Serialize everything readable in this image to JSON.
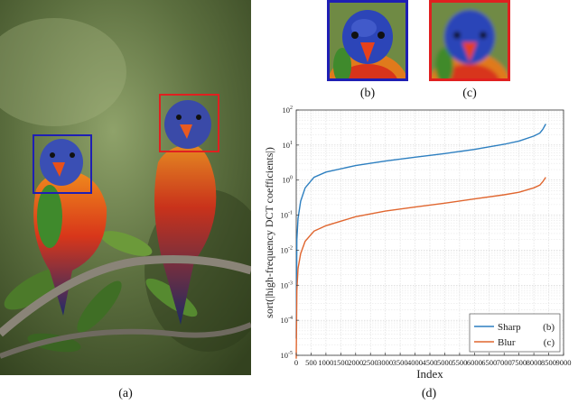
{
  "panel_labels": {
    "a": "(a)",
    "b": "(b)",
    "c": "(c)",
    "d": "(d)"
  },
  "colors": {
    "sharp_series": "#2d7fc0",
    "blur_series": "#e0662f",
    "box_sharp": "#1f1fb4",
    "box_blur": "#e02020"
  },
  "icons": [
    "parrot-photo",
    "parrot-crop-sharp",
    "parrot-crop-blur"
  ],
  "chart_data": {
    "type": "line",
    "xlabel": "Index",
    "ylabel": "sort(|high-frequency DCT coefficients|)",
    "xlim": [
      0,
      9000
    ],
    "x_ticks": [
      "0",
      "500",
      "1000",
      "1500",
      "2000",
      "2500",
      "3000",
      "3500",
      "4000",
      "4500",
      "5000",
      "5500",
      "6000",
      "6500",
      "7000",
      "7500",
      "8000",
      "8500",
      "9000"
    ],
    "ylim_log10": [
      -5,
      2
    ],
    "y_tick_exponents": [
      -5,
      -4,
      -3,
      -2,
      -1,
      0,
      1,
      2
    ],
    "y_scale": "log",
    "grid": true,
    "legend_position": "bottom-right",
    "legend": [
      {
        "label": "Sharp",
        "tag": "(b)"
      },
      {
        "label": "Blur",
        "tag": "(c)"
      }
    ],
    "series": [
      {
        "name": "Sharp",
        "x": [
          0,
          20,
          60,
          150,
          300,
          600,
          1000,
          2000,
          3000,
          4000,
          5000,
          6000,
          7000,
          7500,
          8000,
          8200,
          8300,
          8400
        ],
        "y": [
          3e-05,
          0.02,
          0.08,
          0.25,
          0.6,
          1.2,
          1.7,
          2.6,
          3.5,
          4.5,
          5.7,
          7.5,
          10.5,
          13,
          18,
          22,
          28,
          40
        ]
      },
      {
        "name": "Blur",
        "x": [
          0,
          20,
          60,
          150,
          300,
          600,
          1000,
          2000,
          3000,
          4000,
          5000,
          6000,
          7000,
          7500,
          8000,
          8200,
          8300,
          8400
        ],
        "y": [
          8e-06,
          0.0007,
          0.003,
          0.008,
          0.018,
          0.035,
          0.05,
          0.09,
          0.13,
          0.17,
          0.22,
          0.29,
          0.38,
          0.45,
          0.6,
          0.72,
          0.9,
          1.2
        ]
      }
    ]
  }
}
